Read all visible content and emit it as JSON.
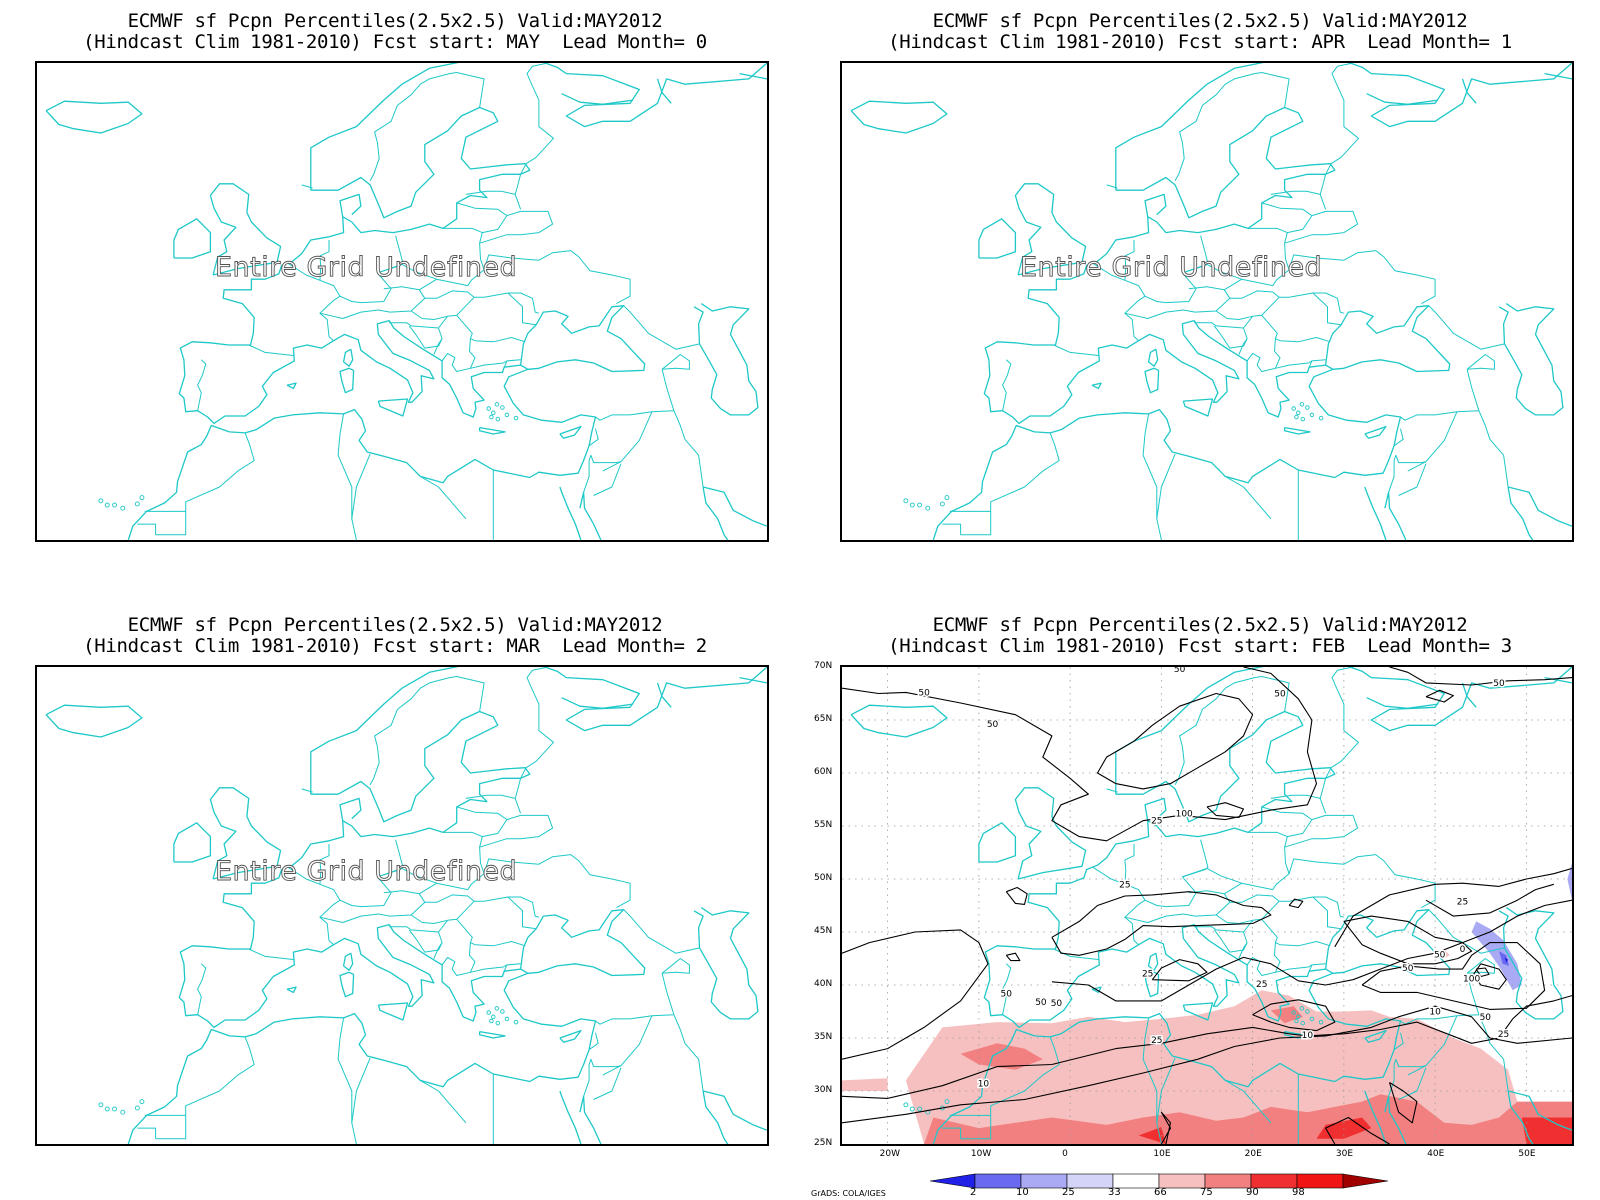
{
  "panels": [
    {
      "title_line1": "ECMWF sf Pcpn Percentiles(2.5x2.5) Valid:MAY2012",
      "title_line2": "(Hindcast Clim 1981-2010) Fcst start: MAY  Lead Month= 0",
      "overlay_text": "Entire Grid Undefined"
    },
    {
      "title_line1": "ECMWF sf Pcpn Percentiles(2.5x2.5) Valid:MAY2012",
      "title_line2": "(Hindcast Clim 1981-2010) Fcst start: APR  Lead Month= 1",
      "overlay_text": "Entire Grid Undefined"
    },
    {
      "title_line1": "ECMWF sf Pcpn Percentiles(2.5x2.5) Valid:MAY2012",
      "title_line2": "(Hindcast Clim 1981-2010) Fcst start: MAR  Lead Month= 2",
      "overlay_text": "Entire Grid Undefined"
    },
    {
      "title_line1": "ECMWF sf Pcpn Percentiles(2.5x2.5) Valid:MAY2012",
      "title_line2": "(Hindcast Clim 1981-2010) Fcst start: FEB  Lead Month= 3",
      "overlay_text": ""
    }
  ],
  "map": {
    "lon_range": [
      -25,
      55
    ],
    "lat_range": [
      25,
      70
    ],
    "lat_ticks": [
      "70N",
      "65N",
      "60N",
      "55N",
      "50N",
      "45N",
      "40N",
      "35N",
      "30N",
      "25N"
    ],
    "lon_ticks": [
      "20W",
      "10W",
      "0",
      "10E",
      "20E",
      "30E",
      "40E",
      "50E"
    ],
    "coastline_color": "#1ec8c8",
    "contour_labels": [
      "50",
      "50",
      "50",
      "50",
      "50",
      "100",
      "25",
      "25",
      "50",
      "50",
      "50",
      "25",
      "10",
      "10",
      "25",
      "25",
      "100",
      "50",
      "0",
      "10",
      "25",
      "50",
      "50",
      "25"
    ]
  },
  "colorbar": {
    "labels": [
      "2",
      "10",
      "25",
      "33",
      "66",
      "75",
      "90",
      "98"
    ],
    "colors": [
      "#2020e6",
      "#6a6af0",
      "#aaaaf4",
      "#d4d4f8",
      "#ffffff",
      "#f7c0c0",
      "#f28080",
      "#f03030",
      "#f01414",
      "#a00000"
    ]
  },
  "credit": "GrADS: COLA/IGES"
}
